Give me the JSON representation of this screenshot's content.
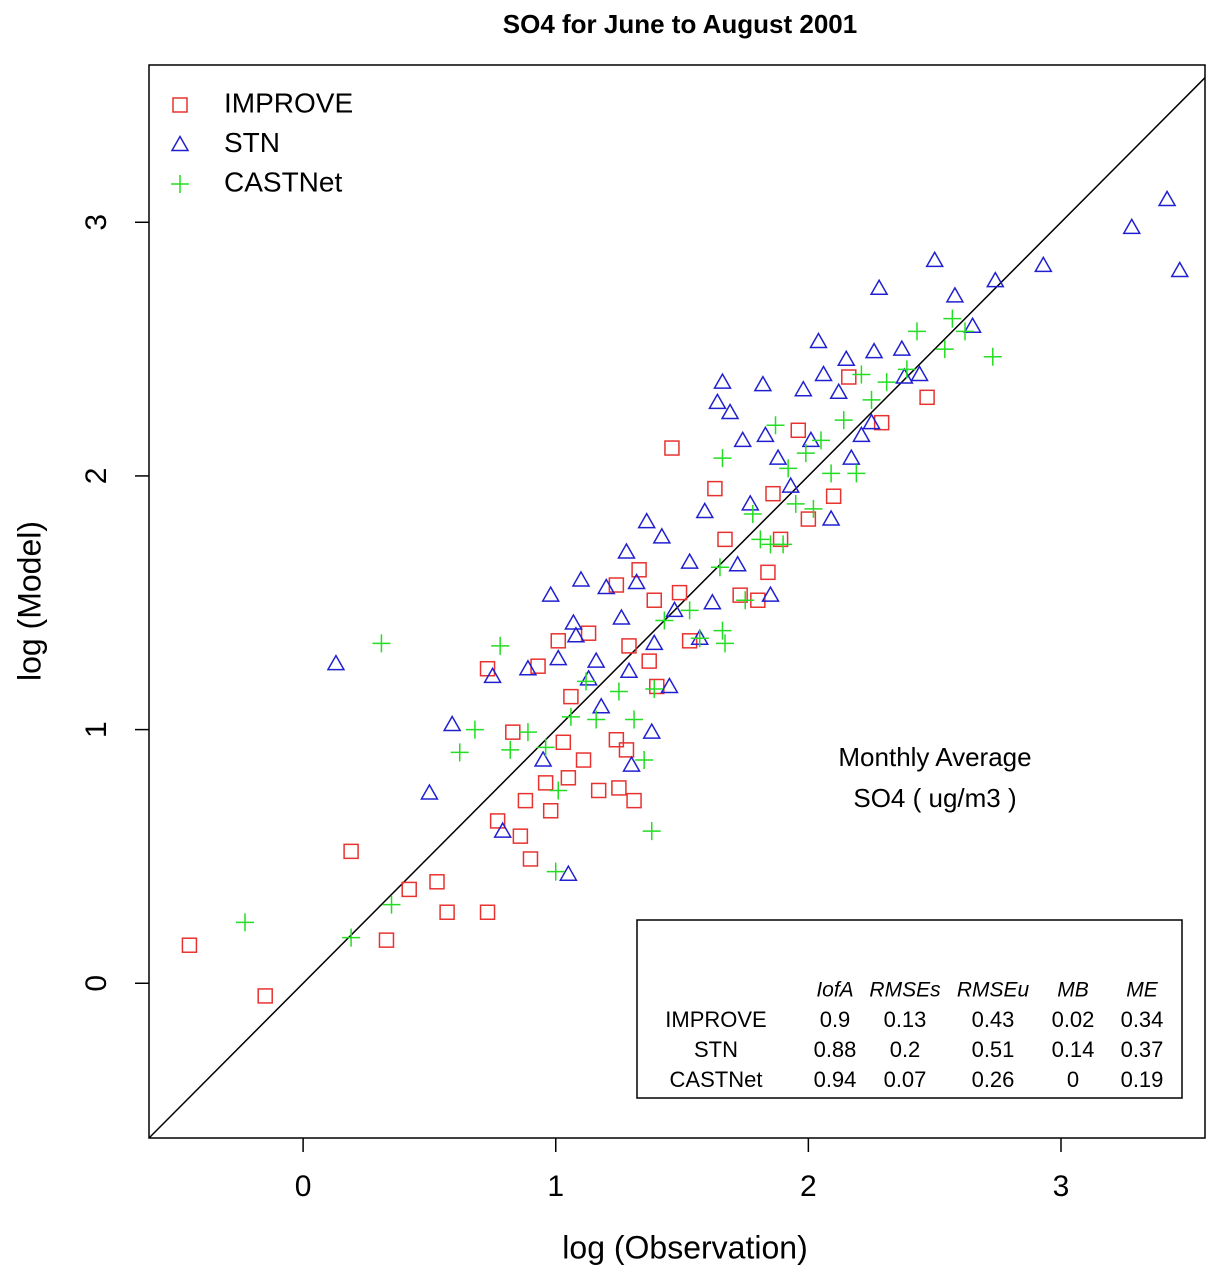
{
  "chart_data": {
    "type": "scatter",
    "title": "SO4 for June to August 2001",
    "x_label": "log (Observation)",
    "y_label": "log (Model)",
    "xlim": [
      -0.61,
      3.57
    ],
    "ylim": [
      -0.61,
      3.62
    ],
    "xticks": [
      0,
      1,
      2,
      3
    ],
    "yticks": [
      0,
      1,
      2,
      3
    ],
    "diagonal": true,
    "legend": "top-left",
    "annotation": [
      "Monthly Average",
      "SO4  ( ug/m3 )"
    ],
    "series": [
      {
        "name": "IMPROVE",
        "color": "#e8322f",
        "marker": "square",
        "x": [
          -0.45,
          -0.15,
          0.19,
          0.33,
          0.42,
          0.53,
          0.57,
          0.73,
          0.73,
          0.77,
          0.83,
          0.86,
          0.88,
          0.9,
          0.96,
          0.98,
          0.93,
          1.01,
          1.03,
          1.05,
          1.06,
          1.11,
          1.17,
          1.24,
          1.25,
          1.28,
          1.31,
          1.29,
          1.33,
          1.37,
          1.4,
          1.46,
          1.39,
          1.49,
          1.53,
          1.63,
          1.73,
          1.8,
          1.84,
          1.86,
          1.96,
          2.0,
          2.1,
          2.16,
          2.29,
          2.47,
          1.13,
          1.24,
          1.67,
          1.89
        ],
        "y": [
          0.15,
          -0.05,
          0.52,
          0.17,
          0.37,
          0.4,
          0.28,
          0.28,
          1.24,
          0.64,
          0.99,
          0.58,
          0.72,
          0.49,
          0.79,
          0.68,
          1.25,
          1.35,
          0.95,
          0.81,
          1.13,
          0.88,
          0.76,
          0.96,
          0.77,
          0.92,
          0.72,
          1.33,
          1.63,
          1.27,
          1.17,
          2.11,
          1.51,
          1.54,
          1.35,
          1.95,
          1.53,
          1.51,
          1.62,
          1.93,
          2.18,
          1.83,
          1.92,
          2.39,
          2.21,
          2.31,
          1.38,
          1.57,
          1.75,
          1.75
        ]
      },
      {
        "name": "STN",
        "color": "#2020d0",
        "marker": "triangle",
        "x": [
          0.13,
          0.5,
          0.59,
          0.75,
          0.79,
          0.89,
          0.98,
          0.95,
          1.01,
          1.05,
          1.07,
          1.1,
          1.08,
          1.13,
          1.18,
          1.16,
          1.2,
          1.26,
          1.28,
          1.29,
          1.3,
          1.32,
          1.36,
          1.38,
          1.39,
          1.45,
          1.42,
          1.47,
          1.53,
          1.57,
          1.59,
          1.62,
          1.64,
          1.66,
          1.69,
          1.72,
          1.74,
          1.77,
          1.82,
          1.83,
          1.85,
          1.88,
          1.93,
          1.98,
          2.01,
          2.04,
          2.06,
          2.09,
          2.12,
          2.15,
          2.17,
          2.21,
          2.25,
          2.28,
          2.26,
          2.37,
          2.38,
          2.44,
          2.5,
          2.58,
          2.65,
          2.74,
          2.93,
          3.28,
          3.42,
          3.47
        ],
        "y": [
          1.26,
          0.75,
          1.02,
          1.21,
          0.6,
          1.24,
          1.53,
          0.88,
          1.28,
          0.43,
          1.42,
          1.59,
          1.37,
          1.2,
          1.09,
          1.27,
          1.56,
          1.44,
          1.7,
          1.23,
          0.86,
          1.58,
          1.82,
          0.99,
          1.34,
          1.17,
          1.76,
          1.47,
          1.66,
          1.36,
          1.86,
          1.5,
          2.29,
          2.37,
          2.25,
          1.65,
          2.14,
          1.89,
          2.36,
          2.16,
          1.53,
          2.07,
          1.96,
          2.34,
          2.14,
          2.53,
          2.4,
          1.83,
          2.33,
          2.46,
          2.07,
          2.16,
          2.21,
          2.74,
          2.49,
          2.5,
          2.39,
          2.4,
          2.85,
          2.71,
          2.59,
          2.77,
          2.83,
          2.98,
          3.09,
          2.81
        ]
      },
      {
        "name": "CASTNet",
        "color": "#22dd22",
        "marker": "plus",
        "x": [
          -0.23,
          0.19,
          0.35,
          0.31,
          0.62,
          0.68,
          0.78,
          0.82,
          0.89,
          0.96,
          1.0,
          1.01,
          1.06,
          1.12,
          1.16,
          1.25,
          1.31,
          1.35,
          1.38,
          1.39,
          1.43,
          1.53,
          1.57,
          1.67,
          1.66,
          1.65,
          1.75,
          1.66,
          1.78,
          1.81,
          1.85,
          1.9,
          1.87,
          1.92,
          1.95,
          1.99,
          2.02,
          2.05,
          2.09,
          2.14,
          2.19,
          2.21,
          2.25,
          2.31,
          2.39,
          2.43,
          2.54,
          2.57,
          2.62,
          2.73
        ],
        "y": [
          0.24,
          0.18,
          0.31,
          1.34,
          0.91,
          1.0,
          1.33,
          0.92,
          0.99,
          0.93,
          0.44,
          0.76,
          1.05,
          1.19,
          1.04,
          1.15,
          1.04,
          0.88,
          0.6,
          1.16,
          1.43,
          1.47,
          1.36,
          1.34,
          1.39,
          1.64,
          1.51,
          2.07,
          1.85,
          1.75,
          1.73,
          1.73,
          2.2,
          2.03,
          1.89,
          2.09,
          1.87,
          2.14,
          2.01,
          2.22,
          2.01,
          2.4,
          2.3,
          2.37,
          2.42,
          2.57,
          2.5,
          2.62,
          2.57,
          2.47
        ]
      }
    ],
    "stats_table": {
      "columns": [
        "IofA",
        "RMSEs",
        "RMSEu",
        "MB",
        "ME"
      ],
      "rows": [
        {
          "name": "IMPROVE",
          "values": [
            "0.9",
            "0.13",
            "0.43",
            "0.02",
            "0.34"
          ]
        },
        {
          "name": "STN",
          "values": [
            "0.88",
            "0.2",
            "0.51",
            "0.14",
            "0.37"
          ]
        },
        {
          "name": "CASTNet",
          "values": [
            "0.94",
            "0.07",
            "0.26",
            "0",
            "0.19"
          ]
        }
      ]
    }
  }
}
